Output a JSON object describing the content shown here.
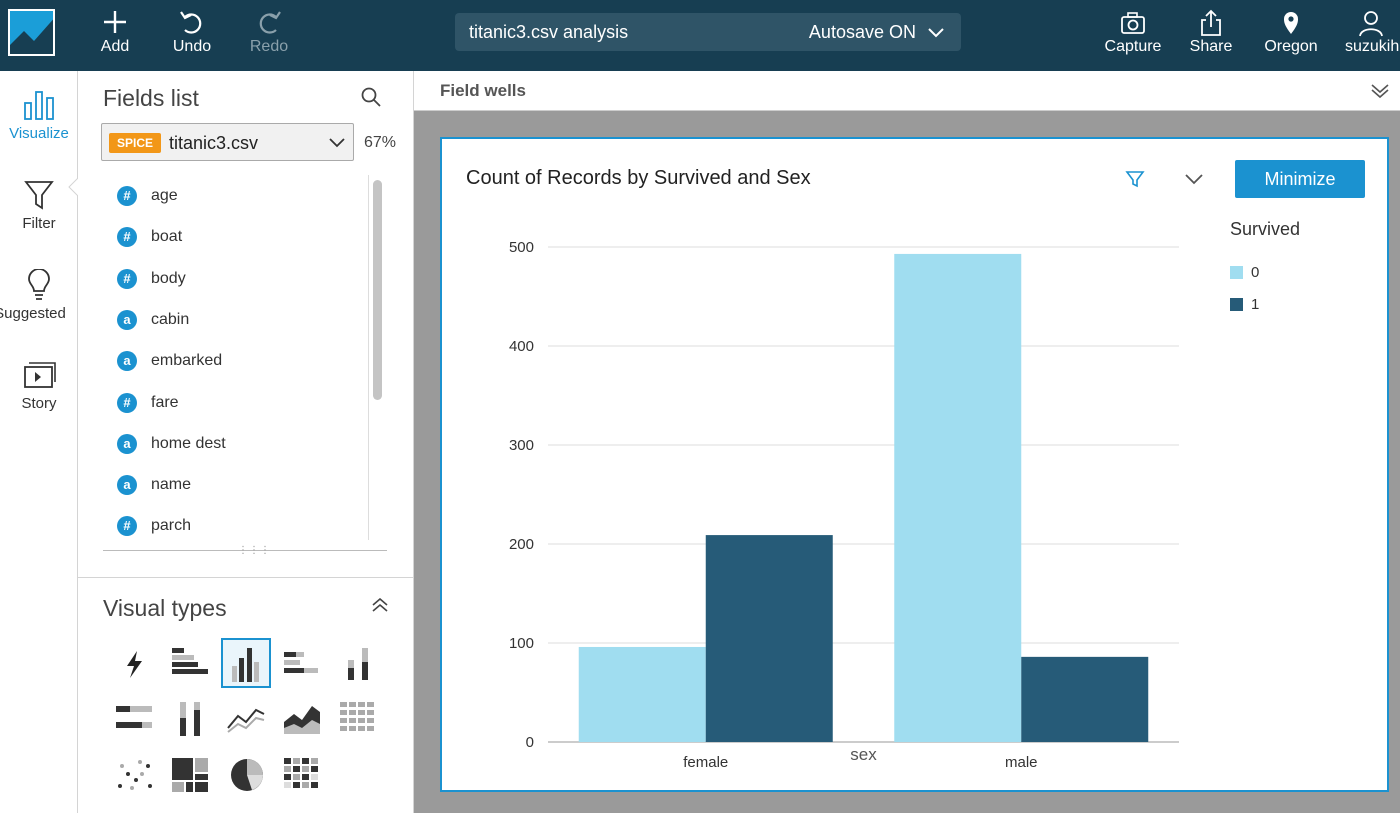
{
  "toolbar": {
    "add": "Add",
    "undo": "Undo",
    "redo": "Redo",
    "capture": "Capture",
    "share": "Share",
    "region": "Oregon",
    "user": "suzukih"
  },
  "analysis": {
    "title": "titanic3.csv analysis",
    "autosave": "Autosave ON"
  },
  "rail": {
    "visualize": "Visualize",
    "filter": "Filter",
    "suggested": "Suggested",
    "story": "Story"
  },
  "fields_panel": {
    "title": "Fields list",
    "badge": "SPICE",
    "dataset": "titanic3.csv",
    "percent": "67%",
    "fields": [
      {
        "name": "age",
        "type": "#"
      },
      {
        "name": "boat",
        "type": "#"
      },
      {
        "name": "body",
        "type": "#"
      },
      {
        "name": "cabin",
        "type": "a"
      },
      {
        "name": "embarked",
        "type": "a"
      },
      {
        "name": "fare",
        "type": "#"
      },
      {
        "name": "home dest",
        "type": "a"
      },
      {
        "name": "name",
        "type": "a"
      },
      {
        "name": "parch",
        "type": "#"
      }
    ]
  },
  "visual_types": {
    "title": "Visual types"
  },
  "field_wells": {
    "label": "Field wells"
  },
  "visual": {
    "title": "Count of Records by Survived and Sex",
    "minimize": "Minimize"
  },
  "colors": {
    "series0": "#a0ddf0",
    "series1": "#265b78",
    "accent": "#1b92d0",
    "topbar": "#173e52"
  },
  "chart_data": {
    "type": "bar",
    "title": "Count of Records by Survived and Sex",
    "xlabel": "sex",
    "ylabel": "",
    "categories": [
      "female",
      "male"
    ],
    "series": [
      {
        "name": "0",
        "values": [
          96,
          493
        ]
      },
      {
        "name": "1",
        "values": [
          209,
          86
        ]
      }
    ],
    "ylim": [
      0,
      500
    ],
    "yticks": [
      0,
      100,
      200,
      300,
      400,
      500
    ],
    "legend_title": "Survived",
    "legend_position": "right",
    "grid": true
  }
}
